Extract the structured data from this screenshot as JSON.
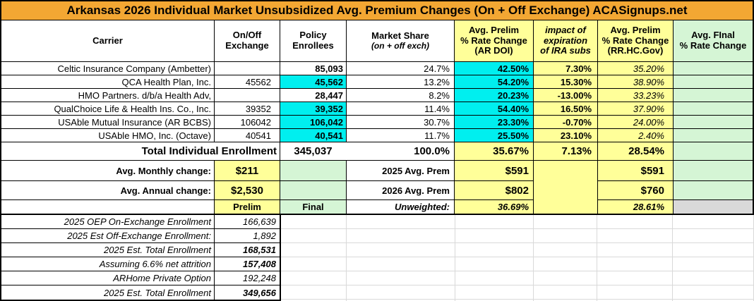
{
  "title": "Arkansas 2026 Individual Market Unsubsidized Avg. Premium Changes (On + Off Exchange) ACASignups.net",
  "colors": {
    "title_bg": "#F3A733",
    "highlight_yellow": "#FFFF99",
    "highlight_green": "#D5F5D5",
    "highlight_cyan": "#00EFEF",
    "highlight_gray": "#D9D9D9"
  },
  "columns": {
    "carrier": "Carrier",
    "on_off_l1": "On/Off",
    "on_off_l2": "Exchange",
    "policy_l1": "Policy",
    "policy_l2": "Enrollees",
    "market_l1": "Market Share",
    "market_l2": "(on + off exch)",
    "ardoi_l1": "Avg. Prelim",
    "ardoi_l2": "% Rate Change",
    "ardoi_l3": "(AR DOI)",
    "impact_l1": "impact of",
    "impact_l2": "expiration",
    "impact_l3": "of IRA subs",
    "rrhc_l1": "Avg. Prelim",
    "rrhc_l2": "% Rate Change",
    "rrhc_l3": "(RR.HC.Gov)",
    "final_l1": "Avg. FInal",
    "final_l2": "% Rate Change"
  },
  "rows": [
    {
      "carrier": "Celtic Insurance Company (Ambetter)",
      "on_off": "",
      "enrollees": "85,093",
      "share": "24.7%",
      "ardoi": "42.50%",
      "impact": "7.30%",
      "rrhc": "35.20%",
      "final": ""
    },
    {
      "carrier": "QCA Health Plan, Inc.",
      "on_off": "45562",
      "enrollees": "45,562",
      "share": "13.2%",
      "ardoi": "54.20%",
      "impact": "15.30%",
      "rrhc": "38.90%",
      "final": ""
    },
    {
      "carrier": "HMO Partners. d/b/a Health Adv,",
      "on_off": "",
      "enrollees": "28,447",
      "share": "8.2%",
      "ardoi": "20.23%",
      "impact": "-13.00%",
      "rrhc": "33.23%",
      "final": ""
    },
    {
      "carrier": "QualChoice Life & Health Ins. Co., Inc.",
      "on_off": "39352",
      "enrollees": "39,352",
      "share": "11.4%",
      "ardoi": "54.40%",
      "impact": "16.50%",
      "rrhc": "37.90%",
      "final": ""
    },
    {
      "carrier": "USAble Mutual Insurance (AR BCBS)",
      "on_off": "106042",
      "enrollees": "106,042",
      "share": "30.7%",
      "ardoi": "23.30%",
      "impact": "-0.70%",
      "rrhc": "24.00%",
      "final": ""
    },
    {
      "carrier": "USAble HMO, Inc. (Octave)",
      "on_off": "40541",
      "enrollees": "40,541",
      "share": "11.7%",
      "ardoi": "25.50%",
      "impact": "23.10%",
      "rrhc": "2.40%",
      "final": ""
    }
  ],
  "totals": {
    "label": "Total Individual Enrollment",
    "enrollees": "345,037",
    "share": "100.0%",
    "ardoi": "35.67%",
    "impact": "7.13%",
    "rrhc": "28.54%"
  },
  "summary": {
    "monthly_label": "Avg. Monthly change:",
    "monthly_value": "$211",
    "annual_label": "Avg. Annual change:",
    "annual_value": "$2,530",
    "prem2025_label": "2025 Avg. Prem",
    "prem2025_ardoi": "$591",
    "prem2025_rrhc": "$591",
    "prem2026_label": "2026 Avg. Prem",
    "prem2026_ardoi": "$802",
    "prem2026_rrhc": "$760",
    "prelim_label": "Prelim",
    "final_label": "Final",
    "unweighted_label": "Unweighted:",
    "unweighted_ardoi": "36.69%",
    "unweighted_rrhc": "28.61%"
  },
  "footnotes": [
    {
      "label": "2025 OEP On-Exchange Enrollment",
      "value": "166,639"
    },
    {
      "label": "2025 Est Off-Exchange Enrollment:",
      "value": "1,892"
    },
    {
      "label": "2025 Est. Total Enrollment",
      "value": "168,531"
    },
    {
      "label": "Assuming 6.6% net attrition",
      "value": "157,408"
    },
    {
      "label": "ARHome Private Option",
      "value": "192,248"
    },
    {
      "label": "2025 Est. Total Enrollment",
      "value": "349,656"
    }
  ]
}
